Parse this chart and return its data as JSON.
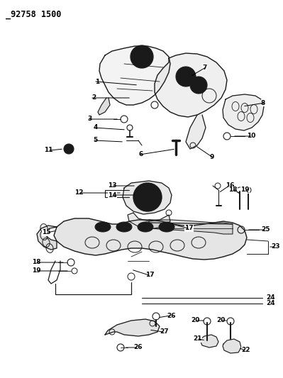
{
  "title": "_92758 1500",
  "bg": "#ffffff",
  "lc": "#1a1a1a",
  "tc": "#000000",
  "figsize": [
    3.99,
    5.33
  ],
  "dpi": 100,
  "fs": 6.5,
  "title_fs": 8.5
}
